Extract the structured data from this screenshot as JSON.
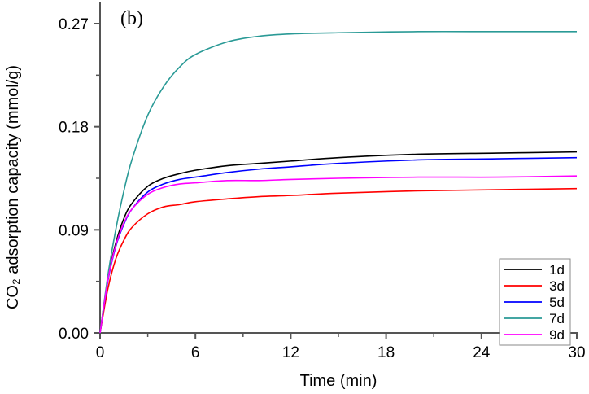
{
  "chart_data": {
    "type": "line",
    "panel_label": "(b)",
    "xlabel": "Time (min)",
    "ylabel": "CO₂ adsorption capacity (mmol/g)",
    "xlim": [
      0,
      30
    ],
    "ylim": [
      0,
      0.27
    ],
    "xticks": [
      "0",
      "6",
      "12",
      "18",
      "24",
      "30"
    ],
    "yticks": [
      "0.00",
      "0.09",
      "0.18",
      "0.27"
    ],
    "grid": false,
    "legend_position": "bottom-right",
    "x": [
      0,
      0.5,
      1,
      1.5,
      2,
      3,
      4,
      5,
      6,
      8,
      10,
      12,
      15,
      20,
      25,
      30
    ],
    "series": [
      {
        "name": "1d",
        "color": "#000000",
        "values": [
          0,
          0.048,
          0.079,
          0.1,
          0.113,
          0.128,
          0.135,
          0.139,
          0.142,
          0.146,
          0.148,
          0.15,
          0.153,
          0.156,
          0.157,
          0.158
        ]
      },
      {
        "name": "3d",
        "color": "#ff0000",
        "values": [
          0,
          0.039,
          0.065,
          0.081,
          0.092,
          0.104,
          0.11,
          0.112,
          0.1145,
          0.117,
          0.119,
          0.12,
          0.122,
          0.124,
          0.125,
          0.126
        ]
      },
      {
        "name": "5d",
        "color": "#0000ff",
        "values": [
          0,
          0.046,
          0.076,
          0.095,
          0.108,
          0.123,
          0.13,
          0.134,
          0.136,
          0.14,
          0.143,
          0.145,
          0.148,
          0.151,
          0.152,
          0.153
        ]
      },
      {
        "name": "7d",
        "color": "#2a9a96",
        "values": [
          0,
          0.051,
          0.091,
          0.124,
          0.151,
          0.19,
          0.215,
          0.232,
          0.243,
          0.254,
          0.259,
          0.261,
          0.262,
          0.263,
          0.263,
          0.263
        ]
      },
      {
        "name": "9d",
        "color": "#ff00ff",
        "values": [
          0,
          0.047,
          0.077,
          0.096,
          0.108,
          0.121,
          0.127,
          0.13,
          0.131,
          0.133,
          0.133,
          0.134,
          0.135,
          0.136,
          0.136,
          0.137
        ]
      }
    ]
  }
}
